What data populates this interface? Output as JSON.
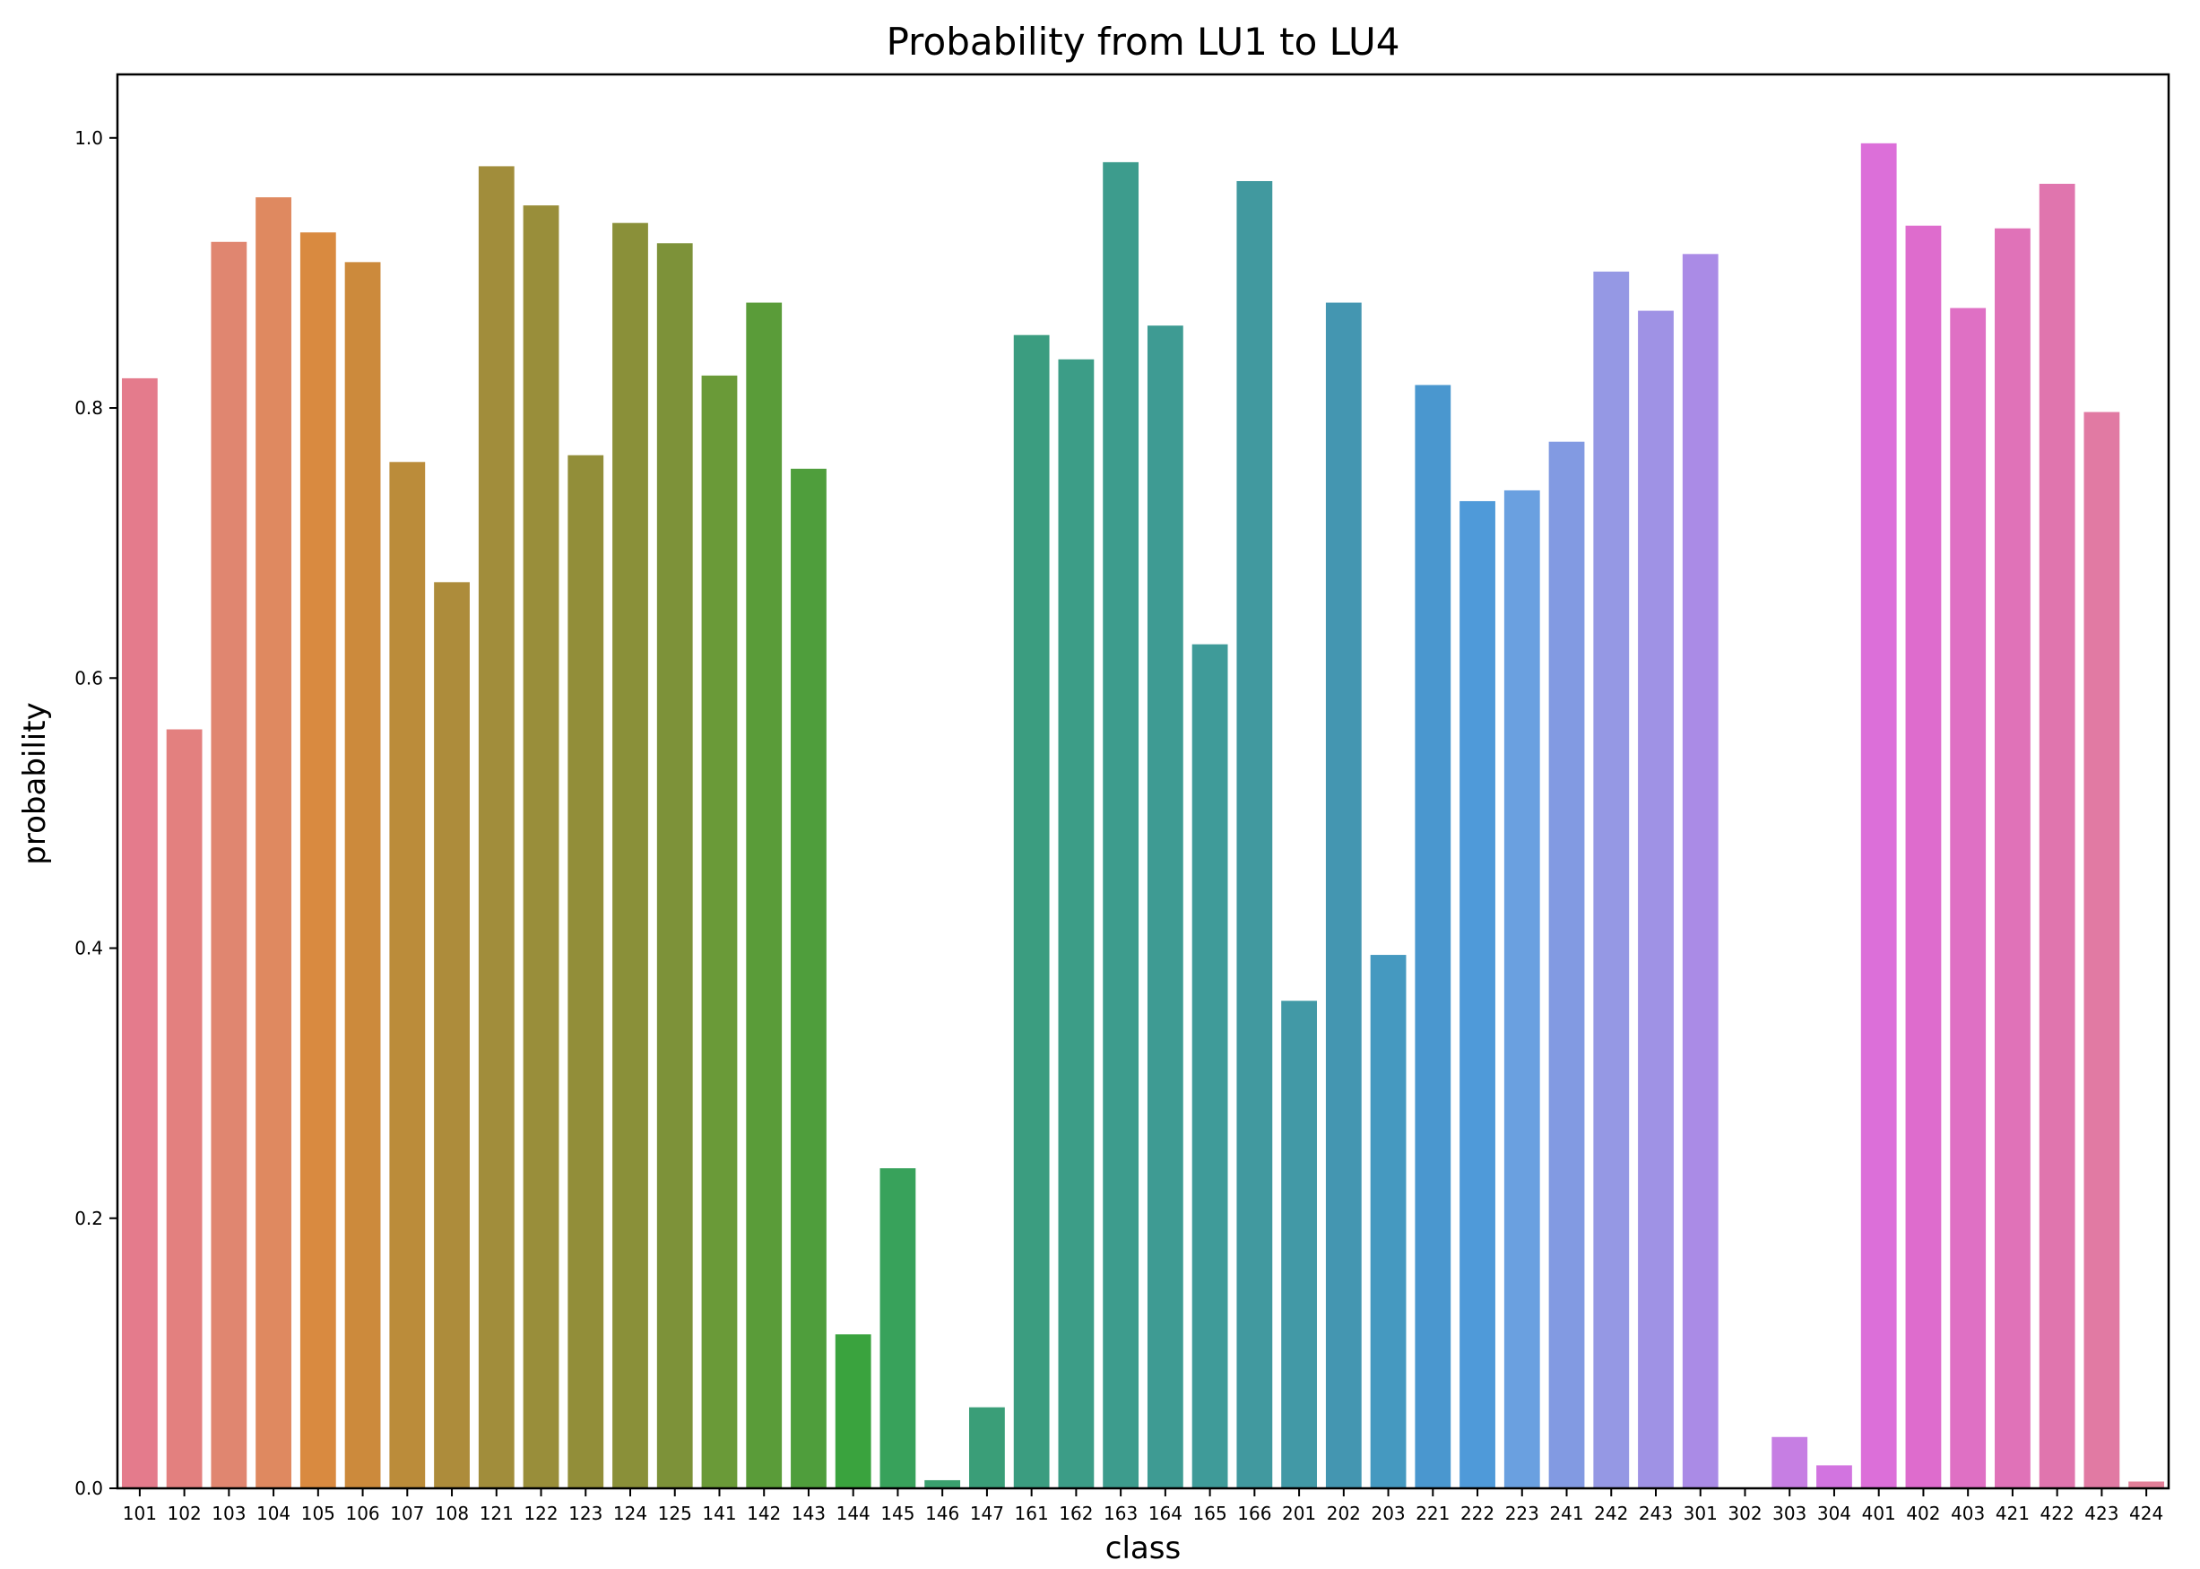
{
  "chart_data": {
    "type": "bar",
    "title": "Probability from LU1 to LU4",
    "xlabel": "class",
    "ylabel": "probability",
    "ylim": [
      0,
      1.047
    ],
    "yticks": [
      0.0,
      0.2,
      0.4,
      0.6,
      0.8,
      1.0
    ],
    "ytick_labels": [
      "0.0",
      "0.2",
      "0.4",
      "0.6",
      "0.8",
      "1.0"
    ],
    "grid": false,
    "categories": [
      "101",
      "102",
      "103",
      "104",
      "105",
      "106",
      "107",
      "108",
      "121",
      "122",
      "123",
      "124",
      "125",
      "141",
      "142",
      "143",
      "144",
      "145",
      "146",
      "147",
      "161",
      "162",
      "163",
      "164",
      "165",
      "166",
      "201",
      "202",
      "203",
      "221",
      "222",
      "223",
      "241",
      "242",
      "243",
      "301",
      "302",
      "303",
      "304",
      "401",
      "402",
      "403",
      "421",
      "422",
      "423",
      "424"
    ],
    "values": [
      0.822,
      0.562,
      0.923,
      0.956,
      0.93,
      0.908,
      0.76,
      0.671,
      0.979,
      0.95,
      0.765,
      0.937,
      0.922,
      0.824,
      0.878,
      0.755,
      0.114,
      0.237,
      0.006,
      0.06,
      0.854,
      0.836,
      0.982,
      0.861,
      0.625,
      0.968,
      0.361,
      0.878,
      0.395,
      0.817,
      0.731,
      0.739,
      0.775,
      0.901,
      0.872,
      0.914,
      0.0,
      0.038,
      0.017,
      0.996,
      0.935,
      0.874,
      0.933,
      0.966,
      0.797,
      0.005
    ],
    "colors": [
      "#e47b8c",
      "#e3807f",
      "#e08670",
      "#df8960",
      "#d98a40",
      "#cc8a3c",
      "#bb8c3a",
      "#ad8c3b",
      "#a18d3b",
      "#998e3a",
      "#928e39",
      "#8a9039",
      "#7d9239",
      "#6a9a38",
      "#5a9c39",
      "#4f9e3c",
      "#3aa33e",
      "#38a25b",
      "#3aa06e",
      "#3a9e78",
      "#3b9d80",
      "#3c9d87",
      "#3d9c8d",
      "#3e9b93",
      "#3f9b99",
      "#41999f",
      "#4299a6",
      "#4496b1",
      "#4599c0",
      "#4a97cf",
      "#4f9ad9",
      "#6aa0e0",
      "#829ae2",
      "#9598e4",
      "#9f92e5",
      "#aa8be6",
      "#b885e5",
      "#c67ee3",
      "#d274e0",
      "#dc6fd9",
      "#de6ccd",
      "#df70c4",
      "#e072b8",
      "#e075ae",
      "#e17aa3",
      "#e27f98"
    ]
  }
}
